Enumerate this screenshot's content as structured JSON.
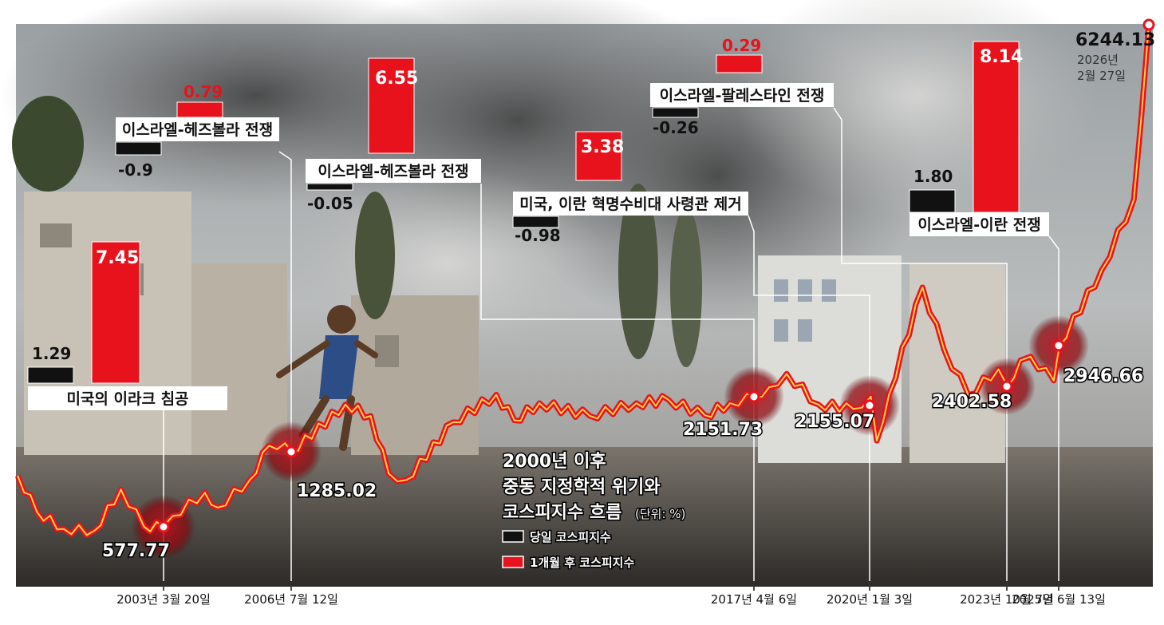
{
  "chart_data": {
    "type": "line",
    "title_lines": [
      "2000년 이후",
      "중동 지정학적 위기와",
      "코스피지수 흐름"
    ],
    "unit": "(단위: %)",
    "legend": [
      {
        "name": "당일 코스피지수",
        "color": "#111111"
      },
      {
        "name": "1개월 후 코스피지수",
        "color": "#e8121c"
      }
    ],
    "latest": {
      "value": "6244.13",
      "date_line1": "2026년",
      "date_line2": "2월 27일"
    },
    "events": [
      {
        "label": "미국의 이라크 침공",
        "date": "2003년 3월 20일",
        "kospi": "577.77",
        "same_day": 1.29,
        "same_day_text": "1.29",
        "month_after": 7.45,
        "month_after_text": "7.45"
      },
      {
        "label": "이스라엘-헤즈볼라 전쟁",
        "date": "2006년 7월 12일",
        "kospi": "1285.02",
        "same_day": -0.9,
        "same_day_text": "-0.9",
        "month_after": 0.79,
        "month_after_text": "0.79"
      },
      {
        "label": "이스라엘-헤즈볼라 전쟁",
        "date": "2017년 4월 6일",
        "kospi": "2151.73",
        "same_day": -0.05,
        "same_day_text": "-0.05",
        "month_after": 6.55,
        "month_after_text": "6.55"
      },
      {
        "label": "미국, 이란 혁명수비대 사령관 제거",
        "date": "2020년 1월 3일",
        "kospi": "2155.07",
        "same_day": -0.98,
        "same_day_text": "-0.98",
        "month_after": 3.38,
        "month_after_text": "3.38"
      },
      {
        "label": "이스라엘-팔레스타인 전쟁",
        "date": "2023년 10월 7일",
        "kospi": "2402.58",
        "same_day": -0.26,
        "same_day_text": "-0.26",
        "month_after": 0.29,
        "month_after_text": "0.29"
      },
      {
        "label": "이스라엘-이란 전쟁",
        "date": "2025년 6월 13일",
        "kospi": "2946.66",
        "same_day": 1.8,
        "same_day_text": "1.80",
        "month_after": 8.14,
        "month_after_text": "8.14"
      }
    ],
    "series": [
      {
        "name": "코스피지수",
        "x": [
          "2000-01",
          "2000-06",
          "2001-01",
          "2001-09",
          "2002-04",
          "2002-10",
          "2003-03",
          "2003-06",
          "2004-04",
          "2004-08",
          "2005-06",
          "2005-12",
          "2006-05",
          "2006-07",
          "2007-10",
          "2008-05",
          "2008-10",
          "2009-03",
          "2010-04",
          "2011-04",
          "2011-09",
          "2012-04",
          "2013-06",
          "2014-07",
          "2015-04",
          "2016-02",
          "2016-09",
          "2017-04",
          "2017-08",
          "2018-01",
          "2018-10",
          "2019-08",
          "2020-01",
          "2020-03",
          "2020-07",
          "2021-06",
          "2022-01",
          "2022-09",
          "2023-07",
          "2023-10",
          "2024-03",
          "2024-07",
          "2025-04",
          "2025-06",
          "2025-10",
          "2026-01",
          "2026-02-27"
        ],
        "values": [
          1059,
          720,
          520,
          470,
          930,
          580,
          578,
          680,
          900,
          760,
          1020,
          1380,
          1420,
          1285,
          2030,
          1850,
          1080,
          1020,
          1750,
          2200,
          1780,
          2050,
          1850,
          2050,
          2100,
          1860,
          2050,
          2152,
          2380,
          2570,
          2030,
          1960,
          2155,
          1460,
          2200,
          3300,
          2900,
          2200,
          2630,
          2403,
          2750,
          2800,
          2480,
          2947,
          3600,
          4800,
          6244
        ]
      }
    ]
  }
}
